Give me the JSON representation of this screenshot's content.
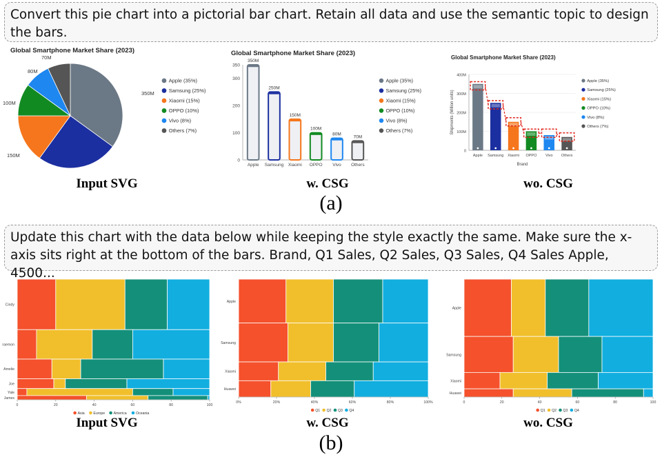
{
  "prompt_a": "Convert this pie chart into a pictorial bar chart. Retain all data and use the semantic topic to design the bars.",
  "prompt_b": "Update this chart with the data below while keeping the style exactly the same. Make sure the x-axis sits right at the bottom of the bars. Brand, Q1 Sales, Q2 Sales, Q3 Sales, Q4 Sales Apple, 4500...",
  "captions": {
    "input": "Input SVG",
    "with_csg": "w. CSG",
    "without_csg": "wo. CSG",
    "part_a": "(a)",
    "part_b": "(b)"
  },
  "colors": {
    "apple": "#6b7886",
    "samsung": "#1c2fa0",
    "xiaomi": "#f5761c",
    "oppo": "#128a22",
    "vivo": "#1e87f0",
    "others": "#555555",
    "asia": "#f4512c",
    "europe": "#f1bf2c",
    "america": "#14907a",
    "oceania": "#12aee0"
  },
  "chart_data": [
    {
      "type": "pie",
      "title": "Global Smartphone Market Share (2023)",
      "categories": [
        "Apple (35%)",
        "Samsung (25%)",
        "Xiaomi (15%)",
        "OPPO (10%)",
        "Vivo (8%)",
        "Others (7%)"
      ],
      "values": [
        35,
        25,
        15,
        10,
        8,
        7
      ],
      "data_labels": [
        "350M",
        "",
        "150M",
        "100M",
        "80M",
        "70M"
      ],
      "legend": "right"
    },
    {
      "type": "bar",
      "title": "Global Smartphone Market Share (2023)",
      "categories": [
        "Apple",
        "Samsung",
        "Xiaomi",
        "OPPO",
        "Vivo",
        "Others"
      ],
      "values": [
        350,
        250,
        150,
        100,
        80,
        70
      ],
      "data_labels": [
        "350M",
        "250M",
        "150M",
        "100M",
        "80M",
        "70M"
      ],
      "yticks": [
        "0",
        "100",
        "200",
        "300",
        "350"
      ],
      "ylim": [
        0,
        350
      ],
      "legend_items": [
        "Apple (35%)",
        "Samsung (25%)",
        "Xiaomi (15%)",
        "OPPO (10%)",
        "Vivo (8%)",
        "Others (7%)"
      ],
      "legend": "right"
    },
    {
      "type": "bar",
      "title": "Global Smartphone Market Share (2023)",
      "categories": [
        "Apple",
        "Samsung",
        "Xiaomi",
        "OPPO",
        "Vivo",
        "Others"
      ],
      "values": [
        350,
        250,
        150,
        100,
        80,
        70
      ],
      "xlabel": "Brand",
      "ylabel": "Shipments (Million units)",
      "yticks": [
        "0",
        "100M",
        "200M",
        "300M",
        "400M"
      ],
      "ylim": [
        0,
        400
      ],
      "legend_items": [
        "Apple (35%)",
        "Samsung (25%)",
        "Xiaomi (15%)",
        "OPPO (10%)",
        "Vivo (8%)",
        "Others (7%)"
      ],
      "legend": "right"
    },
    {
      "type": "bar",
      "subtype": "marimekko",
      "categories": [
        "Cindy",
        "raemon",
        "Amelie",
        "Joe",
        "Yale",
        "James"
      ],
      "row_weights": [
        36,
        21,
        14,
        7,
        5,
        3
      ],
      "series": [
        {
          "name": "Asia",
          "values": [
            20,
            10,
            18,
            19,
            5,
            36
          ]
        },
        {
          "name": "Europe",
          "values": [
            36,
            29,
            15,
            6,
            55,
            32
          ]
        },
        {
          "name": "America",
          "values": [
            22,
            21,
            43,
            32,
            21,
            31
          ]
        },
        {
          "name": "Oceania",
          "values": [
            22,
            40,
            24,
            43,
            19,
            1
          ]
        }
      ],
      "xticks": [
        "0",
        "20",
        "40",
        "60",
        "80",
        "100"
      ],
      "xlim": [
        0,
        100
      ],
      "legend": "bottom"
    },
    {
      "type": "bar",
      "subtype": "marimekko",
      "categories": [
        "Apple",
        "Samsung",
        "Xiaomi",
        "Huawei"
      ],
      "row_weights": [
        35,
        31,
        15,
        13
      ],
      "series": [
        {
          "name": "Q1",
          "values": [
            25,
            26,
            21,
            17
          ]
        },
        {
          "name": "Q2",
          "values": [
            25,
            24,
            25,
            21
          ]
        },
        {
          "name": "Q3",
          "values": [
            26,
            24,
            25,
            23
          ]
        },
        {
          "name": "Q4",
          "values": [
            24,
            26,
            29,
            39
          ]
        }
      ],
      "xticks": [
        "0%",
        "20%",
        "40%",
        "60%",
        "80%",
        "100%"
      ],
      "xlim": [
        0,
        100
      ],
      "legend": "bottom"
    },
    {
      "type": "bar",
      "subtype": "marimekko",
      "categories": [
        "Apple",
        "Samsung",
        "Xiaomi",
        "Huawei"
      ],
      "row_weights": [
        35,
        22,
        10,
        5
      ],
      "series": [
        {
          "name": "Q1",
          "values": [
            25,
            26,
            19,
            26
          ]
        },
        {
          "name": "Q2",
          "values": [
            18,
            24,
            25,
            31
          ]
        },
        {
          "name": "Q3",
          "values": [
            23,
            23,
            27,
            38
          ]
        },
        {
          "name": "Q4",
          "values": [
            34,
            27,
            29,
            5
          ]
        }
      ],
      "xticks": [
        "0",
        "20",
        "40",
        "60",
        "80",
        "100"
      ],
      "xlim": [
        0,
        100
      ],
      "legend": "bottom"
    }
  ]
}
